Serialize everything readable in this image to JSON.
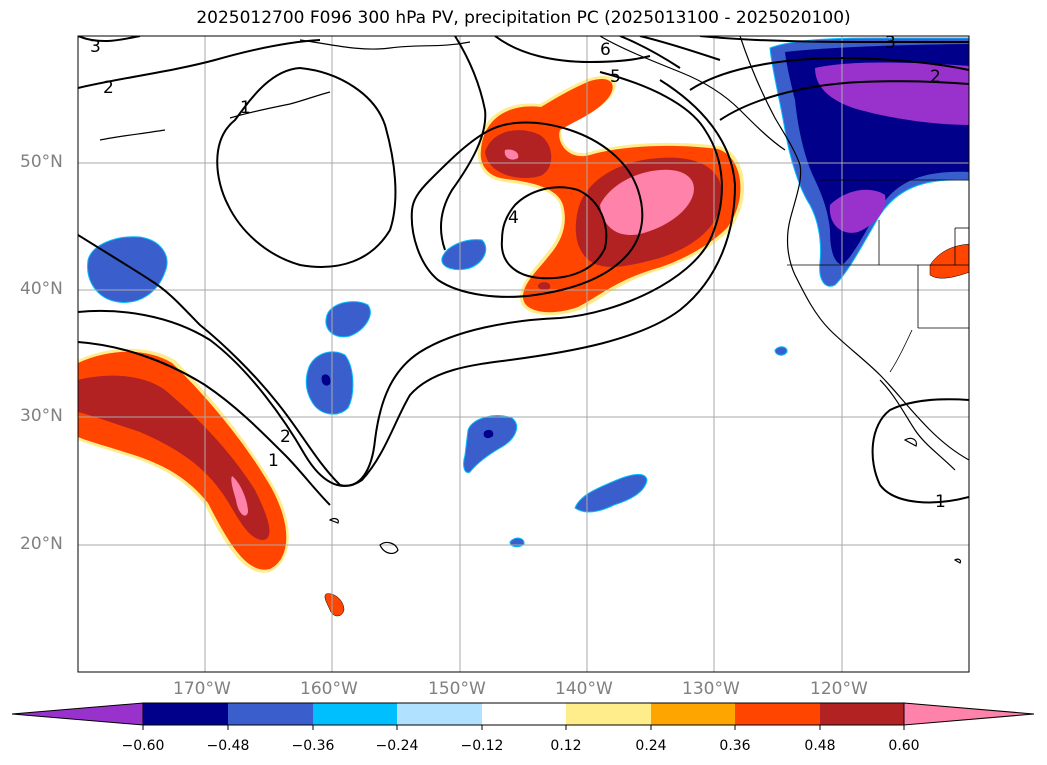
{
  "title": "2025012700 F096 300 hPa PV, precipitation PC (2025013100 - 2025020100)",
  "lon_labels": [
    "170°W",
    "160°W",
    "150°W",
    "140°W",
    "130°W",
    "120°W"
  ],
  "lat_labels": [
    "50°N",
    "40°N",
    "30°N",
    "20°N"
  ],
  "contour_labels": [
    "3",
    "2",
    "1",
    "4",
    "5",
    "6",
    "2",
    "1",
    "3",
    "2",
    "1"
  ],
  "colorbar": {
    "ticks": [
      "−0.60",
      "−0.48",
      "−0.36",
      "−0.24",
      "−0.12",
      "0.12",
      "0.24",
      "0.36",
      "0.48",
      "0.60"
    ],
    "colors": [
      "#9932cc",
      "#00008b",
      "#3a5fcd",
      "#00bfff",
      "#b0e2ff",
      "#ffffff",
      "#ffec8b",
      "#ffa500",
      "#ff4500",
      "#b22222",
      "#ff82ab"
    ]
  }
}
